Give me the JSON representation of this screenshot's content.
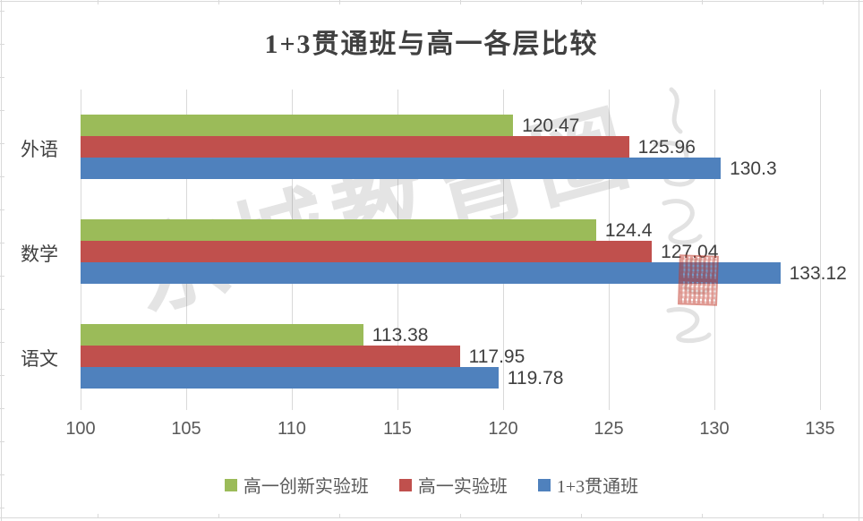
{
  "title": "1+3贯通班与高一各层比较",
  "chart_data": {
    "type": "bar",
    "orientation": "horizontal",
    "title": "1+3贯通班与高一各层比较",
    "categories": [
      "外语",
      "数学",
      "语文"
    ],
    "series": [
      {
        "name": "高一创新实验班",
        "color": "#9BBB59",
        "values": [
          120.47,
          124.4,
          113.38
        ]
      },
      {
        "name": "高一实验班",
        "color": "#C0504D",
        "values": [
          125.96,
          127.04,
          117.95
        ]
      },
      {
        "name": "1+3贯通班",
        "color": "#4F81BD",
        "values": [
          130.3,
          133.12,
          119.78
        ]
      }
    ],
    "xlim": [
      100,
      135
    ],
    "xticks": [
      100,
      105,
      110,
      115,
      120,
      125,
      130,
      135
    ],
    "grid": true,
    "data_labels": true,
    "legend_position": "bottom"
  },
  "watermark": {
    "text": "京城教育圈"
  },
  "colors": {
    "bar_green": "#9BBB59",
    "bar_red": "#C0504D",
    "bar_blue": "#4F81BD",
    "gridline": "#D9D9D9",
    "axis_text": "#595959",
    "title_text": "#404040",
    "value_label_text": "#404040",
    "background": "#FFFFFF",
    "seal_red": "#C23B2E"
  }
}
